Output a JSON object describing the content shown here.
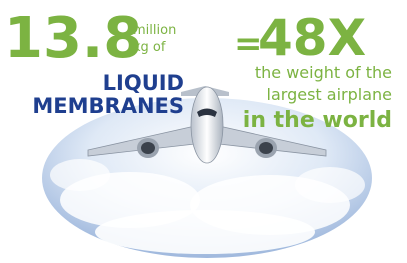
{
  "left": {
    "number": "13.8",
    "unit_line1": "million",
    "unit_line2": "kg of",
    "line1": "LIQUID",
    "line2": "MEMBRANES"
  },
  "right": {
    "equals": "=",
    "number": "48X",
    "line1": "the weight of the",
    "line2": "largest airplane",
    "line3": "in the world"
  }
}
